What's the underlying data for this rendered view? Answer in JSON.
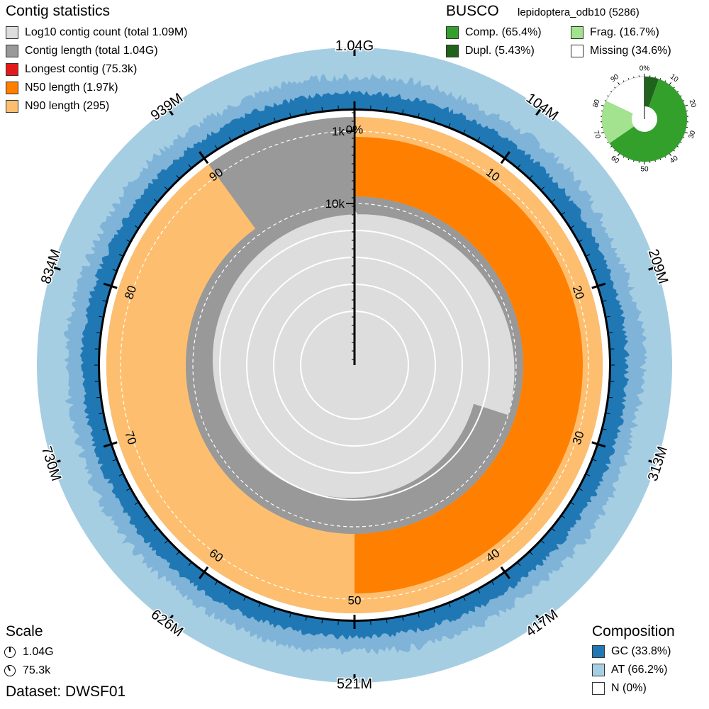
{
  "chart_data": {
    "type": "snail",
    "center_total_label": "1.04G",
    "outer_ticks": [
      {
        "pct": 0,
        "label": "1.04G"
      },
      {
        "pct": 10,
        "label": "104M"
      },
      {
        "pct": 20,
        "label": "209M"
      },
      {
        "pct": 30,
        "label": "313M"
      },
      {
        "pct": 40,
        "label": "417M"
      },
      {
        "pct": 50,
        "label": "521M"
      },
      {
        "pct": 60,
        "label": "626M"
      },
      {
        "pct": 70,
        "label": "730M"
      },
      {
        "pct": 80,
        "label": "834M"
      },
      {
        "pct": 90,
        "label": "939M"
      }
    ],
    "percent_ticks": [
      "0%",
      "10",
      "20",
      "30",
      "40",
      "50",
      "60",
      "70",
      "80",
      "90"
    ],
    "radial_scale_labels": [
      "1k",
      "10k"
    ],
    "n50_pct": 50,
    "n90_pct": 90,
    "busco_donut_ticks": [
      "0%",
      "10",
      "20",
      "30",
      "40",
      "50",
      "60",
      "70",
      "80",
      "90"
    ],
    "busco_values": {
      "complete": 65.4,
      "duplicated": 5.43,
      "fragmented": 16.7,
      "missing": 34.6
    },
    "composition_values": {
      "gc": 33.8,
      "at": 66.2,
      "n": 0
    }
  },
  "contig_stats": {
    "title": "Contig statistics",
    "items": [
      {
        "label": "Log10 contig count (total 1.09M)",
        "color": "#dddddd"
      },
      {
        "label": "Contig length (total 1.04G)",
        "color": "#999999"
      },
      {
        "label": "Longest contig (75.3k)",
        "color": "#e31a1c"
      },
      {
        "label": "N50 length (1.97k)",
        "color": "#ff7f00"
      },
      {
        "label": "N90 length (295)",
        "color": "#fdbf6f"
      }
    ]
  },
  "busco": {
    "title": "BUSCO",
    "lineage": "lepidoptera_odb10 (5286)",
    "items": [
      {
        "label": "Comp. (65.4%)",
        "color": "#33a02c"
      },
      {
        "label": "Frag. (16.7%)",
        "color": "#a3e28f"
      },
      {
        "label": "Dupl. (5.43%)",
        "color": "#20641c"
      },
      {
        "label": "Missing (34.6%)",
        "color": "#ffffff"
      }
    ]
  },
  "scale": {
    "title": "Scale",
    "items": [
      {
        "label": "1.04G"
      },
      {
        "label": "75.3k"
      }
    ]
  },
  "composition": {
    "title": "Composition",
    "items": [
      {
        "label": "GC (33.8%)",
        "color": "#1f78b4"
      },
      {
        "label": "AT (66.2%)",
        "color": "#a6cee3"
      },
      {
        "label": "N (0%)",
        "color": "#ffffff"
      }
    ]
  },
  "dataset": "Dataset: DWSF01"
}
